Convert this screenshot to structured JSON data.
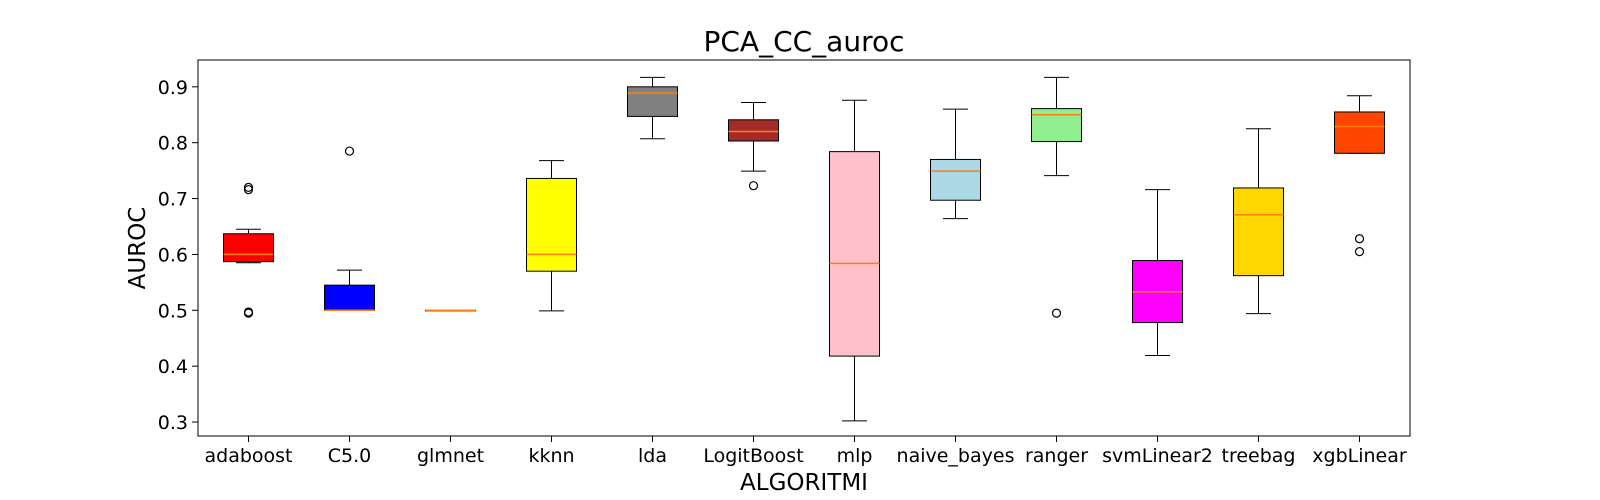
{
  "chart_data": {
    "type": "box",
    "title": "PCA_CC_auroc",
    "xlabel": "ALGORITMI",
    "ylabel": "AUROC",
    "ylim": [
      0.275,
      0.948
    ],
    "yticks": [
      "0.3",
      "0.4",
      "0.5",
      "0.6",
      "0.7",
      "0.8",
      "0.9"
    ],
    "grid": false,
    "median_color": "#ff7f0e",
    "categories": [
      "adaboost",
      "C5.0",
      "glmnet",
      "kknn",
      "lda",
      "LogitBoost",
      "mlp",
      "naive_bayes",
      "ranger",
      "svmLinear2",
      "treebag",
      "xgbLinear"
    ],
    "boxes": [
      {
        "name": "adaboost",
        "color": "#ff0000",
        "whislo": 0.585,
        "q1": 0.587,
        "med": 0.6,
        "q3": 0.637,
        "whishi": 0.645,
        "fliers": [
          0.495,
          0.497,
          0.716,
          0.72
        ]
      },
      {
        "name": "C5.0",
        "color": "#0000ff",
        "whislo": 0.5,
        "q1": 0.5,
        "med": 0.5,
        "q3": 0.545,
        "whishi": 0.572,
        "fliers": [
          0.785
        ]
      },
      {
        "name": "glmnet",
        "color": "#aaaaaa",
        "whislo": 0.5,
        "q1": 0.5,
        "med": 0.5,
        "q3": 0.5,
        "whishi": 0.5,
        "fliers": []
      },
      {
        "name": "kknn",
        "color": "#ffff00",
        "whislo": 0.499,
        "q1": 0.57,
        "med": 0.6,
        "q3": 0.736,
        "whishi": 0.768,
        "fliers": []
      },
      {
        "name": "lda",
        "color": "#808080",
        "whislo": 0.807,
        "q1": 0.847,
        "med": 0.889,
        "q3": 0.9,
        "whishi": 0.917,
        "fliers": []
      },
      {
        "name": "LogitBoost",
        "color": "#a52a2a",
        "whislo": 0.749,
        "q1": 0.803,
        "med": 0.82,
        "q3": 0.841,
        "whishi": 0.872,
        "fliers": [
          0.723
        ]
      },
      {
        "name": "mlp",
        "color": "#ffc0cb",
        "whislo": 0.302,
        "q1": 0.418,
        "med": 0.584,
        "q3": 0.784,
        "whishi": 0.876,
        "fliers": []
      },
      {
        "name": "naive_bayes",
        "color": "#add8e6",
        "whislo": 0.664,
        "q1": 0.697,
        "med": 0.749,
        "q3": 0.77,
        "whishi": 0.86,
        "fliers": []
      },
      {
        "name": "ranger",
        "color": "#90ee90",
        "whislo": 0.741,
        "q1": 0.802,
        "med": 0.85,
        "q3": 0.861,
        "whishi": 0.917,
        "fliers": [
          0.495
        ]
      },
      {
        "name": "svmLinear2",
        "color": "#ff00ff",
        "whislo": 0.419,
        "q1": 0.478,
        "med": 0.533,
        "q3": 0.589,
        "whishi": 0.716,
        "fliers": []
      },
      {
        "name": "treebag",
        "color": "#ffd700",
        "whislo": 0.494,
        "q1": 0.562,
        "med": 0.671,
        "q3": 0.719,
        "whishi": 0.825,
        "fliers": []
      },
      {
        "name": "xgbLinear",
        "color": "#ff4500",
        "whislo": 0.781,
        "q1": 0.781,
        "med": 0.829,
        "q3": 0.855,
        "whishi": 0.884,
        "fliers": [
          0.605,
          0.628
        ]
      }
    ]
  }
}
